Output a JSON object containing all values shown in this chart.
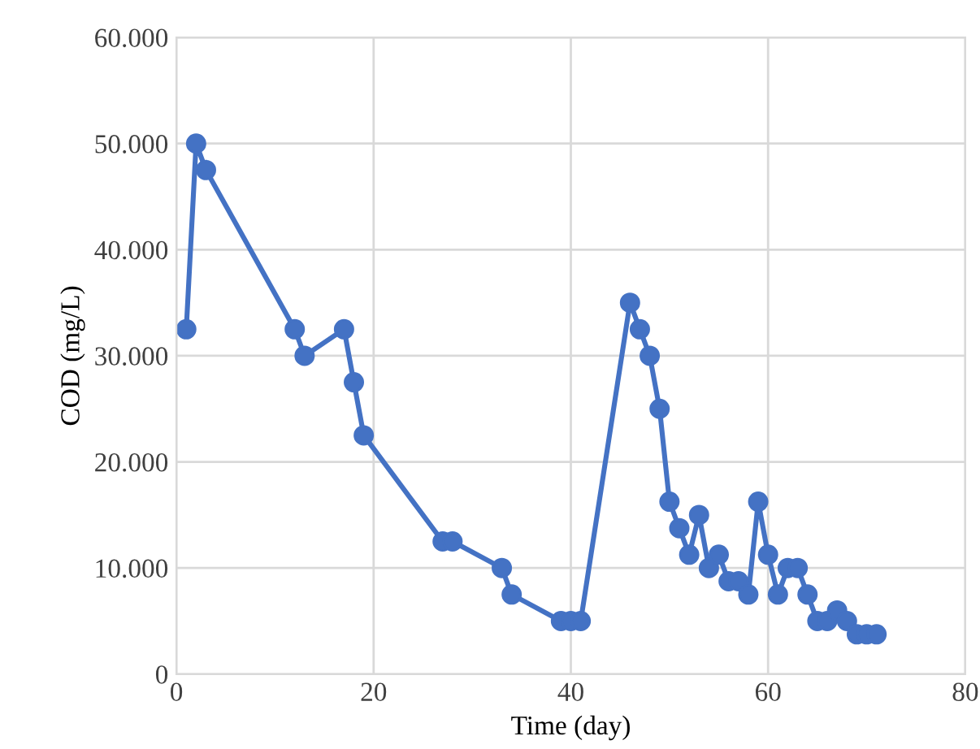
{
  "chart_data": {
    "type": "line",
    "xlabel": "Time (day)",
    "ylabel": "COD (mg/L)",
    "x": [
      1,
      2,
      3,
      12,
      13,
      17,
      18,
      19,
      27,
      28,
      33,
      34,
      39,
      40,
      41,
      46,
      47,
      48,
      49,
      50,
      51,
      52,
      53,
      54,
      55,
      56,
      57,
      58,
      59,
      60,
      61,
      62,
      63,
      64,
      65,
      66,
      67,
      68,
      69,
      70,
      71
    ],
    "series": [
      {
        "color": "#4472c4",
        "values": [
          32500,
          50000,
          47500,
          32500,
          30000,
          32500,
          27500,
          22500,
          12500,
          12500,
          10000,
          7500,
          5000,
          5000,
          5000,
          35000,
          32500,
          30000,
          25000,
          16250,
          13750,
          11250,
          15000,
          10000,
          11250,
          8750,
          8750,
          7500,
          16250,
          11250,
          7500,
          10000,
          10000,
          7500,
          5000,
          5000,
          6000,
          5000,
          3750,
          3750,
          3750
        ]
      }
    ],
    "xlim": [
      0,
      80
    ],
    "xticks": [
      0,
      20,
      40,
      60,
      80
    ],
    "ylim": [
      0,
      60000
    ],
    "yticks": [
      0,
      {
        "value": 10000,
        "label": "10.000"
      },
      {
        "value": 20000,
        "label": "20.000"
      },
      {
        "value": 30000,
        "label": "30.000"
      },
      {
        "value": 40000,
        "label": "40.000"
      },
      {
        "value": 50000,
        "label": "50.000"
      },
      {
        "value": 60000,
        "label": "60.000"
      }
    ],
    "grid": true,
    "marker": "circle",
    "line_style": "solid",
    "legend": false
  }
}
